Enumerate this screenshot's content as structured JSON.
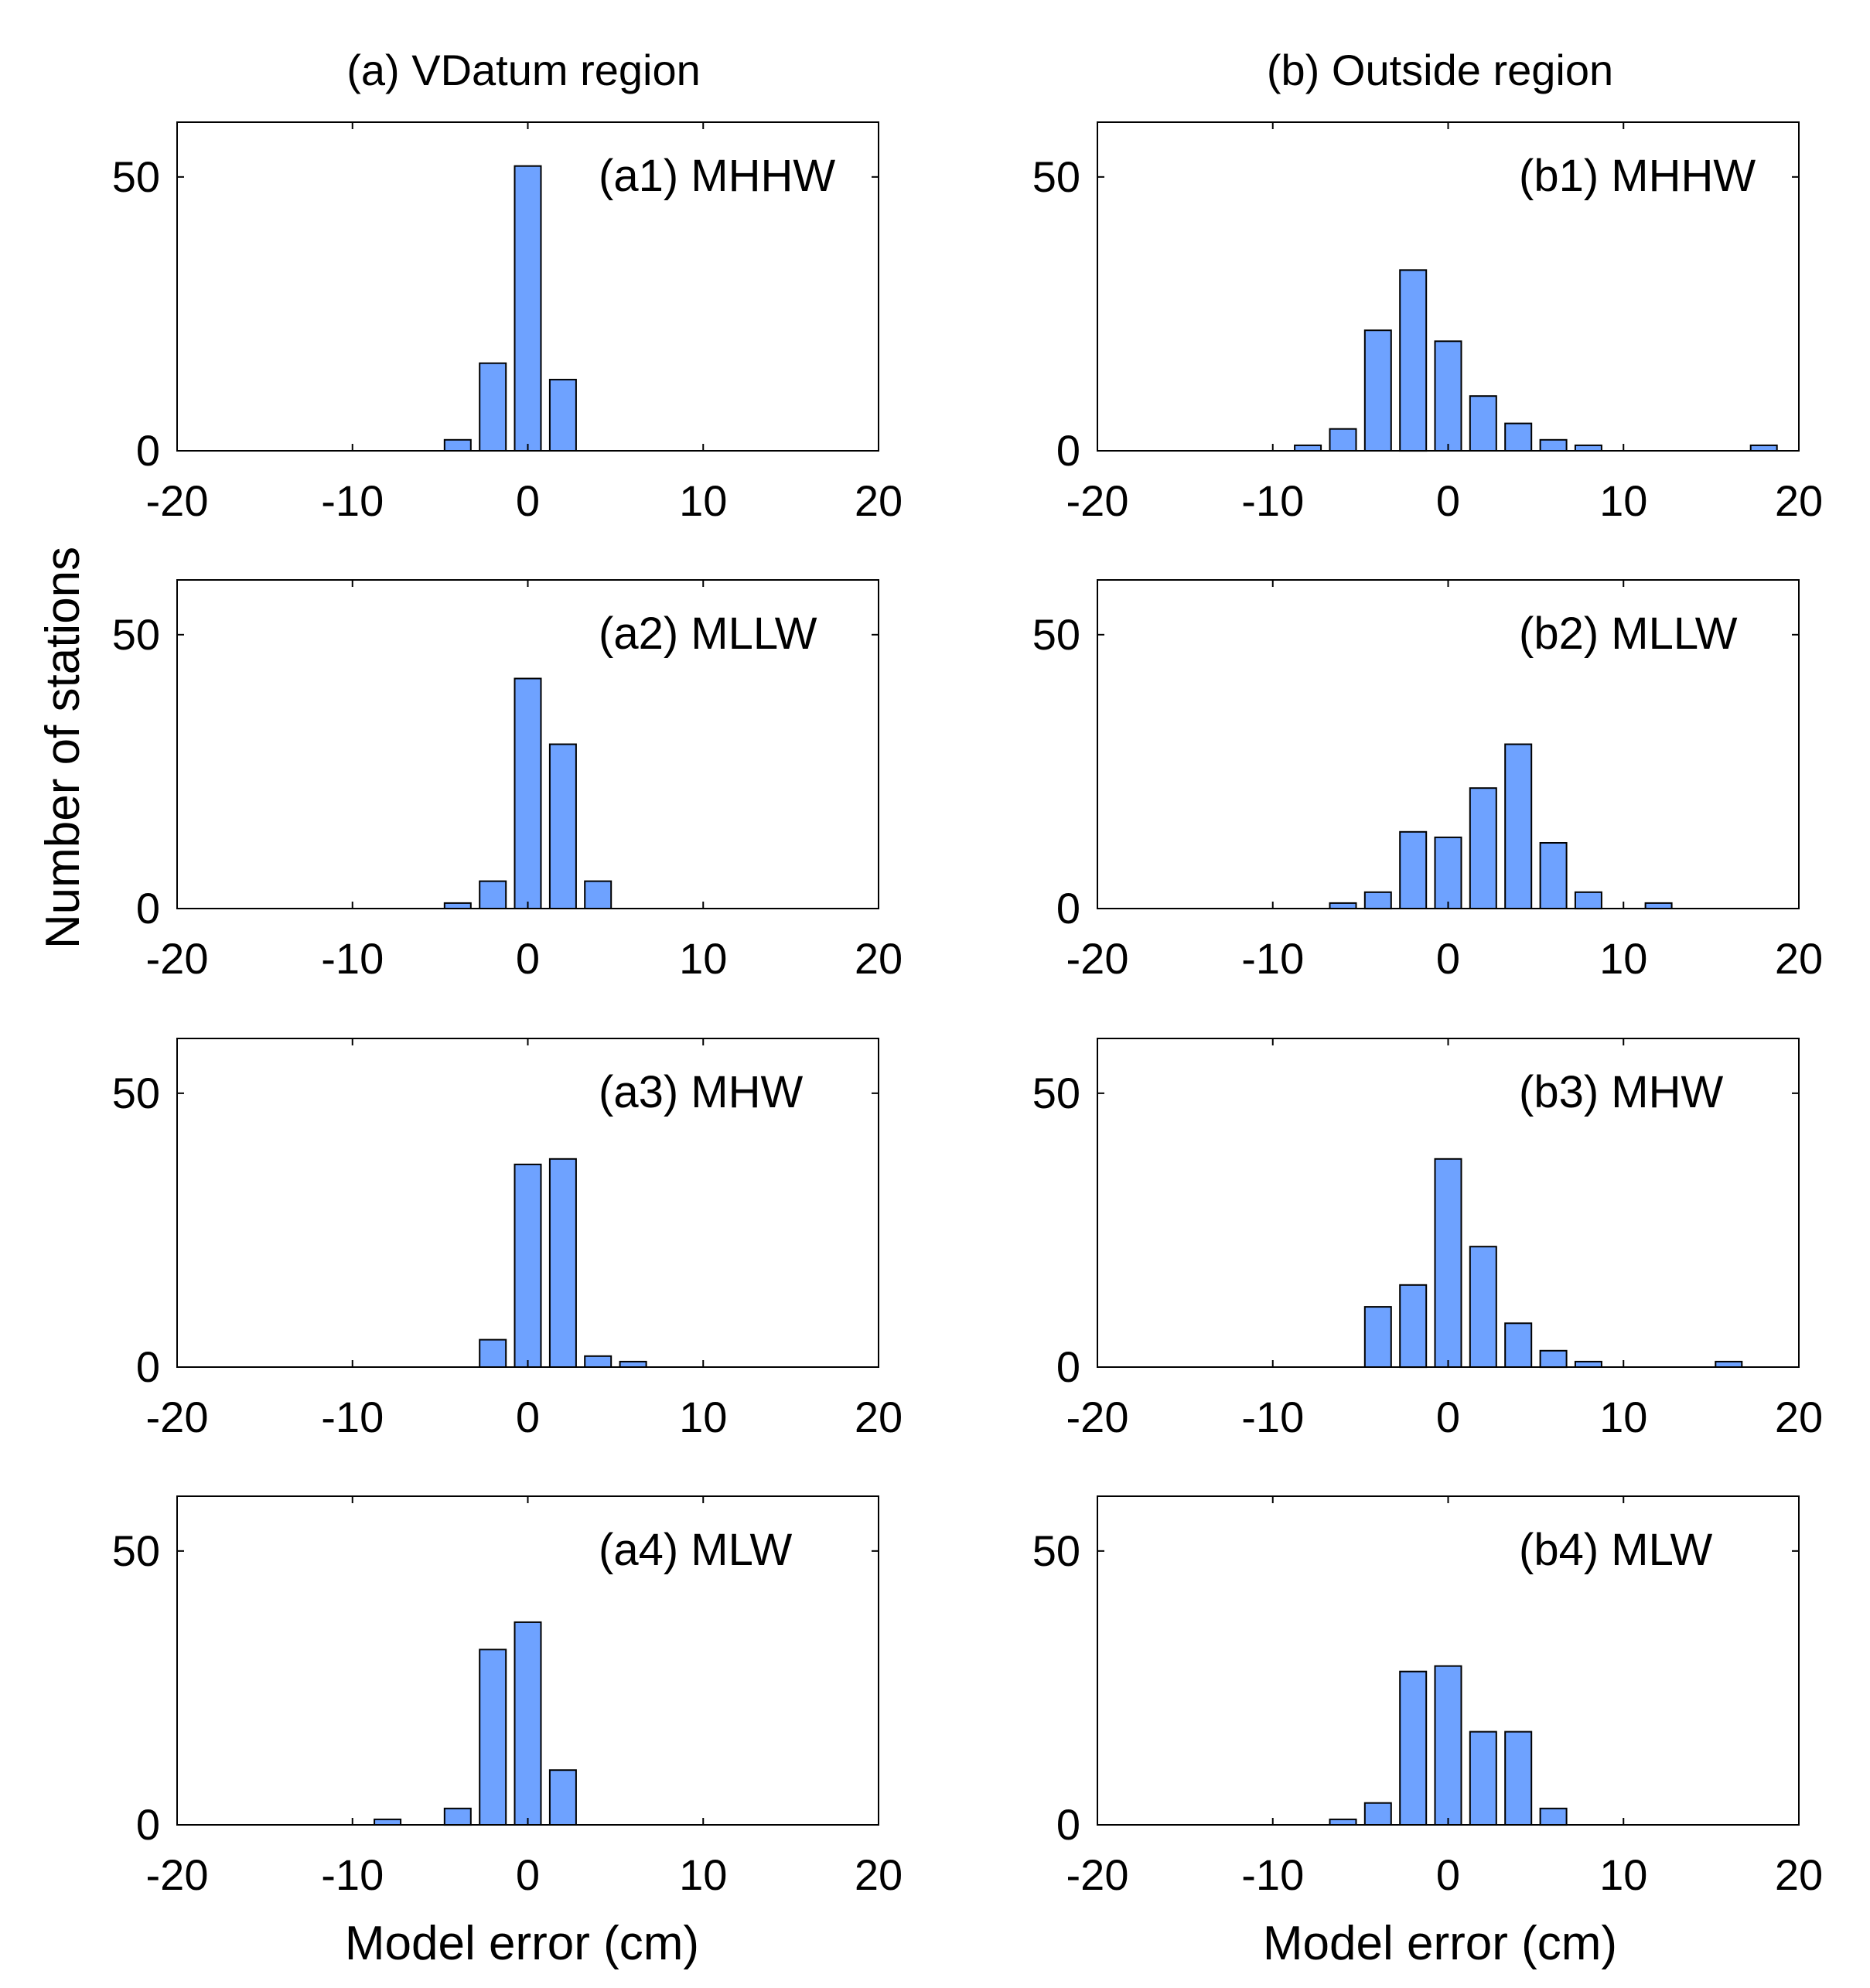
{
  "figure": {
    "y_label": "Number of stations",
    "x_label": "Model error (cm)",
    "columns": [
      {
        "title": "(a) VDatum region"
      },
      {
        "title": "(b) Outside region"
      }
    ],
    "bar_color": "#6ea2ff"
  },
  "chart_data": [
    {
      "id": "a1",
      "type": "bar",
      "title": "(a1) MHHW",
      "column": 0,
      "row": 0,
      "bins": [
        -8,
        -6,
        -4,
        -2,
        0,
        2,
        4,
        6,
        8,
        10
      ],
      "values": [
        0,
        0,
        2,
        16,
        52,
        13,
        0,
        0,
        0,
        0
      ],
      "xlim": [
        -20,
        20
      ],
      "ylim": [
        0,
        60
      ],
      "xticks": [
        -20,
        -10,
        0,
        10,
        20
      ],
      "yticks": [
        0,
        50
      ]
    },
    {
      "id": "a2",
      "type": "bar",
      "title": "(a2) MLLW",
      "column": 0,
      "row": 1,
      "bins": [
        -4,
        -2,
        0,
        2,
        4
      ],
      "values": [
        1,
        5,
        42,
        30,
        5
      ],
      "xlim": [
        -20,
        20
      ],
      "ylim": [
        0,
        60
      ],
      "xticks": [
        -20,
        -10,
        0,
        10,
        20
      ],
      "yticks": [
        0,
        50
      ]
    },
    {
      "id": "a3",
      "type": "bar",
      "title": "(a3) MHW",
      "column": 0,
      "row": 2,
      "bins": [
        -2,
        0,
        2,
        4,
        6
      ],
      "values": [
        5,
        37,
        38,
        2,
        1
      ],
      "xlim": [
        -20,
        20
      ],
      "ylim": [
        0,
        60
      ],
      "xticks": [
        -20,
        -10,
        0,
        10,
        20
      ],
      "yticks": [
        0,
        50
      ]
    },
    {
      "id": "a4",
      "type": "bar",
      "title": "(a4) MLW",
      "column": 0,
      "row": 3,
      "bins": [
        -8,
        -6,
        -4,
        -2,
        0,
        2
      ],
      "values": [
        1,
        0,
        3,
        32,
        37,
        10
      ],
      "xlim": [
        -20,
        20
      ],
      "ylim": [
        0,
        60
      ],
      "xticks": [
        -20,
        -10,
        0,
        10,
        20
      ],
      "yticks": [
        0,
        50
      ]
    },
    {
      "id": "b1",
      "type": "bar",
      "title": "(b1) MHHW",
      "column": 1,
      "row": 0,
      "bins": [
        -8,
        -6,
        -4,
        -2,
        0,
        2,
        4,
        6,
        8,
        10,
        12,
        14,
        16,
        18
      ],
      "values": [
        1,
        4,
        22,
        33,
        20,
        10,
        5,
        2,
        1,
        0,
        0,
        0,
        0,
        1
      ],
      "xlim": [
        -20,
        20
      ],
      "ylim": [
        0,
        60
      ],
      "xticks": [
        -20,
        -10,
        0,
        10,
        20
      ],
      "yticks": [
        0,
        50
      ]
    },
    {
      "id": "b2",
      "type": "bar",
      "title": "(b2) MLLW",
      "column": 1,
      "row": 1,
      "bins": [
        -6,
        -4,
        -2,
        0,
        2,
        4,
        6,
        8,
        10,
        12
      ],
      "values": [
        1,
        3,
        14,
        13,
        22,
        30,
        12,
        3,
        0,
        1
      ],
      "xlim": [
        -20,
        20
      ],
      "ylim": [
        0,
        60
      ],
      "xticks": [
        -20,
        -10,
        0,
        10,
        20
      ],
      "yticks": [
        0,
        50
      ]
    },
    {
      "id": "b3",
      "type": "bar",
      "title": "(b3) MHW",
      "column": 1,
      "row": 2,
      "bins": [
        -4,
        -2,
        0,
        2,
        4,
        6,
        8,
        10,
        12,
        14,
        16
      ],
      "values": [
        11,
        15,
        38,
        22,
        8,
        3,
        1,
        0,
        0,
        0,
        1
      ],
      "xlim": [
        -20,
        20
      ],
      "ylim": [
        0,
        60
      ],
      "xticks": [
        -20,
        -10,
        0,
        10,
        20
      ],
      "yticks": [
        0,
        50
      ]
    },
    {
      "id": "b4",
      "type": "bar",
      "title": "(b4) MLW",
      "column": 1,
      "row": 3,
      "bins": [
        -6,
        -4,
        -2,
        0,
        2,
        4,
        6
      ],
      "values": [
        1,
        4,
        28,
        29,
        17,
        17,
        3
      ],
      "xlim": [
        -20,
        20
      ],
      "ylim": [
        0,
        60
      ],
      "xticks": [
        -20,
        -10,
        0,
        10,
        20
      ],
      "yticks": [
        0,
        50
      ]
    }
  ]
}
